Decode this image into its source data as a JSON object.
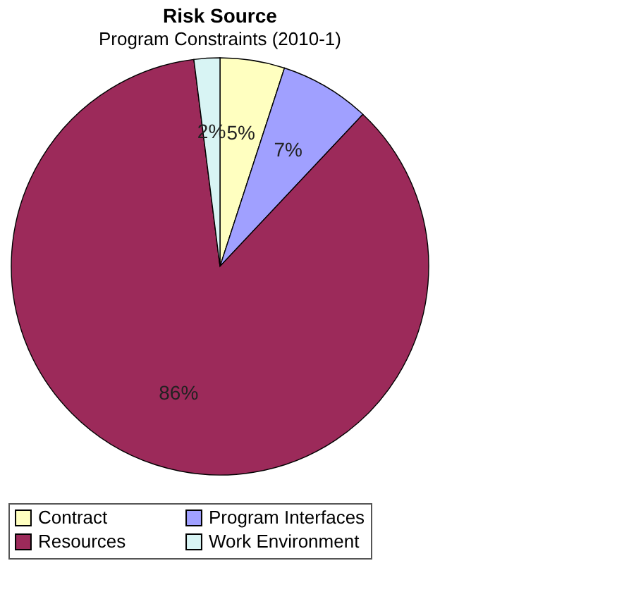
{
  "chart_data": {
    "type": "pie",
    "title": "Risk Source",
    "subtitle": "Program Constraints (2010-1)",
    "categories": [
      "Contract",
      "Program Interfaces",
      "Resources",
      "Work Environment"
    ],
    "values": [
      5,
      7,
      86,
      2
    ],
    "colors": [
      "#ffffc0",
      "#a0a0ff",
      "#9c2a5a",
      "#d8f4f4"
    ],
    "value_labels": [
      "5%",
      "7%",
      "86%",
      "2%"
    ],
    "legend": "bottom"
  }
}
